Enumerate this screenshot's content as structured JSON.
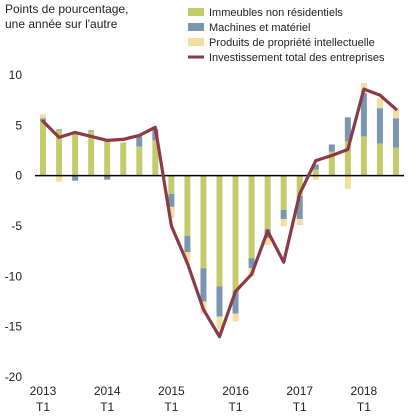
{
  "chart_data": {
    "type": "bar",
    "ylabel": [
      "Points de pourcentage,",
      "une année sur l'autre"
    ],
    "ylim": [
      -20,
      10
    ],
    "yticks": [
      -20,
      -15,
      -10,
      -5,
      0,
      5,
      10
    ],
    "x_tick_labels": [
      {
        "index": 0,
        "year": "2013",
        "quarter": "T1"
      },
      {
        "index": 4,
        "year": "2014",
        "quarter": "T1"
      },
      {
        "index": 8,
        "year": "2015",
        "quarter": "T1"
      },
      {
        "index": 12,
        "year": "2016",
        "quarter": "T1"
      },
      {
        "index": 16,
        "year": "2017",
        "quarter": "T1"
      },
      {
        "index": 20,
        "year": "2018",
        "quarter": "T1"
      }
    ],
    "categories": [
      "2013T1",
      "2013T2",
      "2013T3",
      "2013T4",
      "2014T1",
      "2014T2",
      "2014T3",
      "2014T4",
      "2015T1",
      "2015T2",
      "2015T3",
      "2015T4",
      "2016T1",
      "2016T2",
      "2016T3",
      "2016T4",
      "2017T1",
      "2017T2",
      "2017T3",
      "2017T4",
      "2018T1",
      "2018T2",
      "2018T3"
    ],
    "stack_series": [
      {
        "name": "Immeubles non résidentiels",
        "color": "#c3cc6b",
        "values": [
          5.4,
          4.5,
          4.3,
          4.4,
          3.4,
          3.3,
          2.9,
          3.5,
          -1.8,
          -6.0,
          -9.2,
          -11.0,
          -11.5,
          -8.2,
          -5.3,
          -3.4,
          -2.0,
          0.6,
          2.4,
          3.4,
          3.9,
          3.2,
          2.8
        ]
      },
      {
        "name": "Machines et matériel",
        "color": "#7b96b0",
        "values": [
          0.3,
          0.1,
          -0.5,
          0.1,
          -0.4,
          0.0,
          1.0,
          1.1,
          -1.3,
          -1.6,
          -3.3,
          -3.0,
          -2.2,
          -1.0,
          -0.9,
          -0.9,
          -2.3,
          0.5,
          0.7,
          2.4,
          4.3,
          3.5,
          2.9
        ]
      },
      {
        "name": "Produits de propriété intellectuelle",
        "color": "#f5dda0",
        "values": [
          0.4,
          -0.6,
          0.0,
          0.0,
          0.0,
          0.0,
          0.0,
          0.0,
          -1.1,
          -1.0,
          -1.2,
          -1.2,
          -0.8,
          -0.8,
          -0.7,
          -0.7,
          -0.6,
          -0.4,
          0.0,
          -1.3,
          1.0,
          1.0,
          1.0
        ]
      }
    ],
    "line_series": {
      "name": "Investissement total des entreprises",
      "color": "#8b3a46",
      "values": [
        5.4,
        3.8,
        4.3,
        3.9,
        3.5,
        3.6,
        4.0,
        4.8,
        -5.0,
        -8.7,
        -13.3,
        -16.0,
        -11.5,
        -9.8,
        -5.5,
        -8.6,
        -1.8,
        1.5,
        2.0,
        2.6,
        8.6,
        8.0,
        6.6
      ]
    },
    "legend_placement": "top-right",
    "grid": false
  }
}
